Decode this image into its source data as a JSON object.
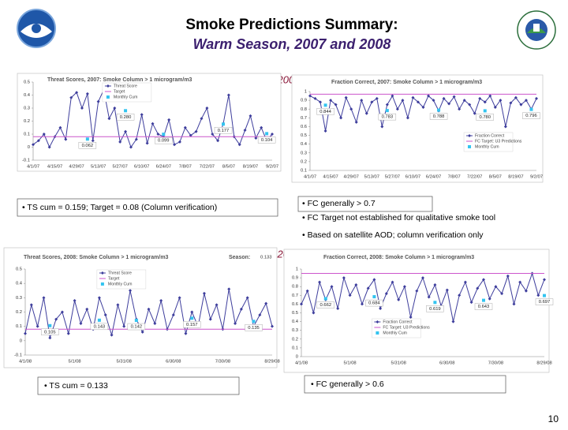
{
  "header": {
    "title": "Smoke Predictions Summary:",
    "subtitle": "Warm Season, 2007 and 2008"
  },
  "year_labels": [
    "2007",
    "2008"
  ],
  "notes": {
    "ts_2007": "• TS cum = 0.159;  Target =  0.08  (Column verification)",
    "fc_2007": [
      "• FC generally > 0.7",
      "• FC Target not established for qualitative smoke tool",
      "• Based on satellite AOD; column verification only"
    ],
    "ts_2008": "• TS cum = 0.133",
    "fc_2008": "• FC generally > 0.6"
  },
  "page_number": "10",
  "chart_data": [
    {
      "type": "line",
      "title": "Threat Scores, 2007: Smoke Column > 1 microgram/m3",
      "categories": [
        "4/1/07",
        null,
        null,
        null,
        "4/15/07",
        null,
        null,
        null,
        "4/29/07",
        null,
        null,
        null,
        "5/13/07",
        null,
        null,
        null,
        "5/27/07",
        null,
        null,
        null,
        "6/10/07",
        null,
        null,
        null,
        "6/24/07",
        null,
        null,
        null,
        "7/8/07",
        null,
        null,
        null,
        "7/22/07",
        null,
        null,
        null,
        "8/5/07",
        null,
        null,
        null,
        "8/19/07",
        null,
        null,
        null,
        "9/2/07"
      ],
      "series": [
        {
          "name": "Threat Score",
          "color": "#3d3d9c",
          "marker": "diamond",
          "values": [
            0.02,
            0.05,
            0.1,
            0.0,
            0.08,
            0.15,
            0.06,
            0.38,
            0.42,
            0.3,
            0.41,
            0.05,
            0.35,
            0.44,
            0.22,
            0.3,
            0.04,
            0.12,
            0.0,
            0.06,
            0.25,
            0.03,
            0.18,
            0.1,
            0.08,
            0.21,
            0.02,
            0.04,
            0.15,
            0.09,
            0.12,
            0.22,
            0.3,
            0.1,
            0.05,
            0.18,
            0.4,
            0.08,
            0.02,
            0.13,
            0.24,
            0.07,
            0.15,
            0.05,
            0.1
          ]
        },
        {
          "name": "Target",
          "color": "#cc55cc",
          "value": 0.08
        },
        {
          "name": "Monthly Cum",
          "color": "#33c4f0",
          "marker": "square",
          "values": [
            null,
            null,
            null,
            null,
            null,
            null,
            null,
            null,
            null,
            null,
            0.062,
            null,
            null,
            null,
            null,
            null,
            null,
            0.28,
            null,
            null,
            null,
            null,
            null,
            null,
            0.099,
            null,
            null,
            null,
            null,
            null,
            null,
            null,
            null,
            null,
            null,
            0.177,
            null,
            null,
            null,
            null,
            null,
            null,
            null,
            0.104,
            null
          ],
          "value_labels": [
            null,
            null,
            null,
            null,
            null,
            null,
            null,
            null,
            null,
            null,
            "0.062",
            null,
            null,
            null,
            null,
            null,
            null,
            "0.280",
            null,
            null,
            null,
            null,
            null,
            null,
            "0.099",
            null,
            null,
            null,
            null,
            null,
            null,
            null,
            null,
            null,
            null,
            "0.177",
            null,
            null,
            null,
            null,
            null,
            null,
            null,
            "0.104",
            null
          ]
        }
      ],
      "ylim": [
        -0.1,
        0.5
      ],
      "yticks": [
        -0.1,
        0,
        0.1,
        0.2,
        0.3,
        0.4,
        0.5
      ],
      "legend": "upper left"
    },
    {
      "type": "line",
      "title": "Fraction Correct, 2007: Smoke Column > 1 microgram/m3",
      "categories": [
        "4/1/07",
        null,
        null,
        null,
        "4/15/07",
        null,
        null,
        null,
        "4/29/07",
        null,
        null,
        null,
        "5/13/07",
        null,
        null,
        null,
        "5/27/07",
        null,
        null,
        null,
        "6/10/07",
        null,
        null,
        null,
        "6/24/07",
        null,
        null,
        null,
        "7/8/07",
        null,
        null,
        null,
        "7/22/07",
        null,
        null,
        null,
        "8/5/07",
        null,
        null,
        null,
        "8/19/07",
        null,
        null,
        null,
        "9/2/07"
      ],
      "series": [
        {
          "name": "Fraction Correct",
          "color": "#3d3d9c",
          "marker": "diamond",
          "values": [
            0.95,
            0.92,
            0.88,
            0.55,
            0.9,
            0.85,
            0.7,
            0.93,
            0.8,
            0.65,
            0.9,
            0.75,
            0.88,
            0.92,
            0.6,
            0.85,
            0.95,
            0.8,
            0.9,
            0.7,
            0.93,
            0.88,
            0.82,
            0.95,
            0.9,
            0.78,
            0.92,
            0.86,
            0.94,
            0.8,
            0.9,
            0.85,
            0.75,
            0.92,
            0.88,
            0.95,
            0.82,
            0.9,
            0.6,
            0.87,
            0.93,
            0.85,
            0.9,
            0.8,
            0.92
          ]
        },
        {
          "name": "FC Target: U3 Predictions",
          "color": "#cc55cc",
          "value": 0.97
        },
        {
          "name": "Monthly Cum",
          "color": "#33c4f0",
          "marker": "square",
          "values": [
            null,
            null,
            null,
            0.844,
            null,
            null,
            null,
            null,
            null,
            null,
            null,
            null,
            null,
            null,
            null,
            0.783,
            null,
            null,
            null,
            null,
            null,
            null,
            null,
            null,
            null,
            0.788,
            null,
            null,
            null,
            null,
            null,
            null,
            null,
            null,
            0.78,
            null,
            null,
            null,
            null,
            null,
            null,
            null,
            null,
            0.796,
            null
          ],
          "value_labels": [
            null,
            null,
            null,
            "0.844",
            null,
            null,
            null,
            null,
            null,
            null,
            null,
            null,
            null,
            null,
            null,
            "0.783",
            null,
            null,
            null,
            null,
            null,
            null,
            null,
            null,
            null,
            "0.788",
            null,
            null,
            null,
            null,
            null,
            null,
            null,
            null,
            "0.780",
            null,
            null,
            null,
            null,
            null,
            null,
            null,
            null,
            "0.796",
            null
          ]
        }
      ],
      "ylim": [
        0.1,
        1
      ],
      "yticks": [
        0.1,
        0.2,
        0.3,
        0.4,
        0.5,
        0.6,
        0.7,
        0.8,
        0.9,
        1
      ],
      "legend": "lower right"
    },
    {
      "type": "line",
      "title": "Threat Scores, 2008: Smoke Column > 1 microgram/m3",
      "season": {
        "label": "Season:",
        "value": 0.133
      },
      "categories": [
        "4/1/08",
        null,
        null,
        null,
        null,
        null,
        null,
        null,
        "5/1/08",
        null,
        null,
        null,
        null,
        null,
        null,
        null,
        "5/31/08",
        null,
        null,
        null,
        null,
        null,
        null,
        null,
        "6/30/08",
        null,
        null,
        null,
        null,
        null,
        null,
        null,
        "7/30/08",
        null,
        null,
        null,
        null,
        null,
        null,
        null,
        "8/29/08"
      ],
      "series": [
        {
          "name": "Threat Score",
          "color": "#3d3d9c",
          "marker": "diamond",
          "values": [
            0.05,
            0.25,
            0.1,
            0.3,
            0.02,
            0.15,
            0.2,
            0.05,
            0.28,
            0.12,
            0.22,
            0.08,
            0.3,
            0.18,
            0.04,
            0.25,
            0.1,
            0.35,
            0.15,
            0.06,
            0.22,
            0.12,
            0.28,
            0.08,
            0.18,
            0.3,
            0.05,
            0.2,
            0.1,
            0.33,
            0.15,
            0.25,
            0.08,
            0.36,
            0.12,
            0.22,
            0.3,
            0.1,
            0.18,
            0.26,
            0.1
          ]
        },
        {
          "name": "Target",
          "color": "#cc55cc",
          "value": 0.08
        },
        {
          "name": "Monthly Cum",
          "color": "#33c4f0",
          "marker": "square",
          "values": [
            null,
            null,
            null,
            null,
            0.105,
            null,
            null,
            null,
            null,
            null,
            null,
            null,
            0.143,
            null,
            null,
            null,
            null,
            null,
            0.142,
            null,
            null,
            null,
            null,
            null,
            null,
            null,
            null,
            0.157,
            null,
            null,
            null,
            null,
            null,
            null,
            null,
            null,
            null,
            0.135,
            null,
            null,
            null
          ]
        }
      ],
      "ylim": [
        -0.1,
        0.5
      ],
      "yticks": [
        -0.1,
        0,
        0.1,
        0.2,
        0.3,
        0.4,
        0.5
      ],
      "legend": "upper left"
    },
    {
      "type": "line",
      "title": "Fraction Correct, 2008: Smoke Column > 1 microgram/m3",
      "categories": [
        "4/1/08",
        null,
        null,
        null,
        null,
        null,
        null,
        null,
        "5/1/08",
        null,
        null,
        null,
        null,
        null,
        null,
        null,
        "5/31/08",
        null,
        null,
        null,
        null,
        null,
        null,
        null,
        "6/30/08",
        null,
        null,
        null,
        null,
        null,
        null,
        null,
        "7/30/08",
        null,
        null,
        null,
        null,
        null,
        null,
        null,
        "8/29/08"
      ],
      "series": [
        {
          "name": "Fraction Correct",
          "color": "#3d3d9c",
          "marker": "diamond",
          "values": [
            0.6,
            0.75,
            0.5,
            0.85,
            0.65,
            0.8,
            0.55,
            0.9,
            0.7,
            0.82,
            0.6,
            0.78,
            0.88,
            0.55,
            0.72,
            0.85,
            0.65,
            0.8,
            0.45,
            0.75,
            0.9,
            0.68,
            0.82,
            0.58,
            0.76,
            0.4,
            0.7,
            0.85,
            0.62,
            0.78,
            0.88,
            0.66,
            0.8,
            0.72,
            0.92,
            0.6,
            0.85,
            0.75,
            0.95,
            0.7,
            0.88
          ]
        },
        {
          "name": "FC Target: U3 Predictions",
          "color": "#cc55cc",
          "value": 0.95
        },
        {
          "name": "Monthly Cum",
          "color": "#33c4f0",
          "marker": "square",
          "values": [
            null,
            null,
            null,
            null,
            0.662,
            null,
            null,
            null,
            null,
            null,
            null,
            null,
            0.684,
            null,
            null,
            null,
            null,
            null,
            null,
            null,
            null,
            null,
            0.619,
            null,
            null,
            null,
            null,
            null,
            null,
            null,
            0.643,
            null,
            null,
            null,
            null,
            null,
            null,
            null,
            null,
            null,
            0.697
          ]
        }
      ],
      "ylim": [
        0,
        1
      ],
      "yticks": [
        0,
        0.1,
        0.2,
        0.3,
        0.4,
        0.5,
        0.6,
        0.7,
        0.8,
        0.9,
        1
      ],
      "legend": "lower left"
    }
  ]
}
